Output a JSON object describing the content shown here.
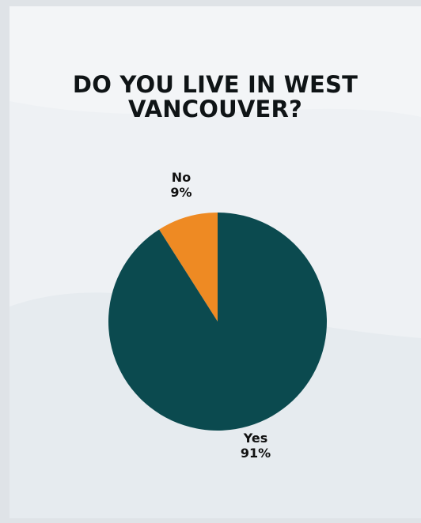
{
  "title_lines": [
    "DO YOU LIVE IN WEST",
    "VANCOUVER?"
  ],
  "colors": {
    "background": "#eef1f4",
    "yes": "#0b4a4f",
    "no": "#ee8a23",
    "text": "#111111"
  },
  "chart_data": {
    "type": "pie",
    "title": "DO YOU LIVE IN WEST VANCOUVER?",
    "slices": [
      {
        "label": "No",
        "value": 9,
        "value_label": "9%",
        "color": "#ee8a23"
      },
      {
        "label": "Yes",
        "value": 91,
        "value_label": "91%",
        "color": "#0b4a4f"
      }
    ],
    "start_angle": "12 o'clock",
    "direction": "counter-clockwise",
    "legend": "none",
    "data_labels": "outside slices"
  }
}
